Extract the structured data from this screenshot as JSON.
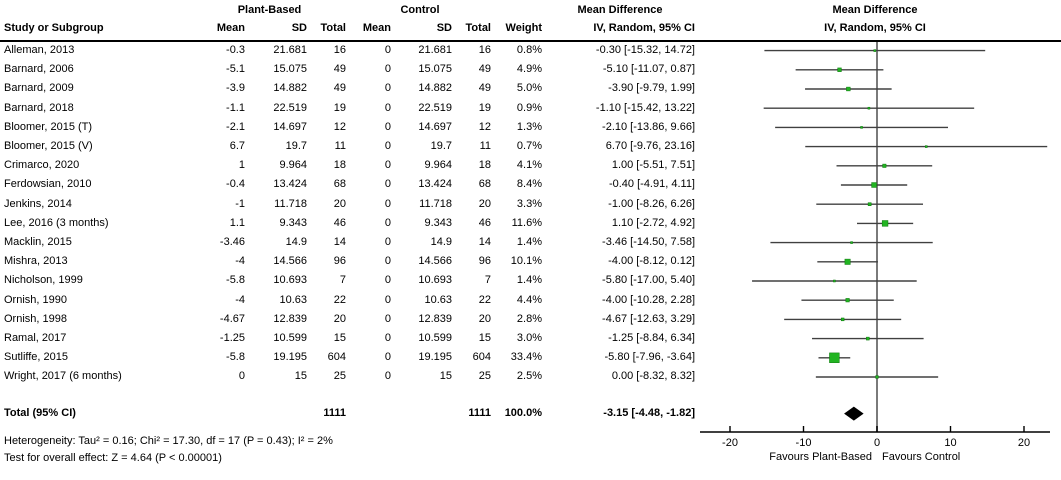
{
  "header": {
    "study_col": "Study or Subgroup",
    "group1_title": "Plant-Based",
    "group2_title": "Control",
    "mean_label": "Mean",
    "sd_label": "SD",
    "total_label": "Total",
    "weight_label": "Weight",
    "md_text_title": "Mean Difference",
    "md_text_subtitle": "IV, Random, 95% CI",
    "md_plot_title": "Mean Difference",
    "md_plot_subtitle": "IV, Random, 95% CI"
  },
  "colors": {
    "marker_green": "#22B422",
    "marker_border": "#0E7A0E",
    "ci_line": "#404040",
    "zero_line": "#7A7A7A",
    "axis": "#000000",
    "diamond": "#000000",
    "text": "#000000"
  },
  "chart_data": {
    "type": "forest",
    "effect_measure": "Mean Difference, IV, Random, 95% CI",
    "xlim": [
      -23.9,
      23.4
    ],
    "axis_ticks": [
      -20,
      -10,
      0,
      10,
      20
    ],
    "favours_left": "Favours Plant-Based",
    "favours_right": "Favours Control",
    "studies": [
      {
        "name": "Alleman, 2013",
        "mean1": "-0.3",
        "sd1": "21.681",
        "total1": "16",
        "mean2": "0",
        "sd2": "21.681",
        "total2": "16",
        "weight": "0.8%",
        "weight_num": 0.8,
        "ci_text": "-0.30 [-15.32, 14.72]",
        "md": -0.3,
        "lo": -15.32,
        "hi": 14.72
      },
      {
        "name": "Barnard, 2006",
        "mean1": "-5.1",
        "sd1": "15.075",
        "total1": "49",
        "mean2": "0",
        "sd2": "15.075",
        "total2": "49",
        "weight": "4.9%",
        "weight_num": 4.9,
        "ci_text": "-5.10 [-11.07, 0.87]",
        "md": -5.1,
        "lo": -11.07,
        "hi": 0.87
      },
      {
        "name": "Barnard, 2009",
        "mean1": "-3.9",
        "sd1": "14.882",
        "total1": "49",
        "mean2": "0",
        "sd2": "14.882",
        "total2": "49",
        "weight": "5.0%",
        "weight_num": 5.0,
        "ci_text": "-3.90 [-9.79, 1.99]",
        "md": -3.9,
        "lo": -9.79,
        "hi": 1.99
      },
      {
        "name": "Barnard, 2018",
        "mean1": "-1.1",
        "sd1": "22.519",
        "total1": "19",
        "mean2": "0",
        "sd2": "22.519",
        "total2": "19",
        "weight": "0.9%",
        "weight_num": 0.9,
        "ci_text": "-1.10 [-15.42, 13.22]",
        "md": -1.1,
        "lo": -15.42,
        "hi": 13.22
      },
      {
        "name": "Bloomer, 2015 (T)",
        "mean1": "-2.1",
        "sd1": "14.697",
        "total1": "12",
        "mean2": "0",
        "sd2": "14.697",
        "total2": "12",
        "weight": "1.3%",
        "weight_num": 1.3,
        "ci_text": "-2.10 [-13.86, 9.66]",
        "md": -2.1,
        "lo": -13.86,
        "hi": 9.66
      },
      {
        "name": "Bloomer, 2015 (V)",
        "mean1": "6.7",
        "sd1": "19.7",
        "total1": "11",
        "mean2": "0",
        "sd2": "19.7",
        "total2": "11",
        "weight": "0.7%",
        "weight_num": 0.7,
        "ci_text": "6.70 [-9.76, 23.16]",
        "md": 6.7,
        "lo": -9.76,
        "hi": 23.16
      },
      {
        "name": "Crimarco, 2020",
        "mean1": "1",
        "sd1": "9.964",
        "total1": "18",
        "mean2": "0",
        "sd2": "9.964",
        "total2": "18",
        "weight": "4.1%",
        "weight_num": 4.1,
        "ci_text": "1.00 [-5.51, 7.51]",
        "md": 1.0,
        "lo": -5.51,
        "hi": 7.51
      },
      {
        "name": "Ferdowsian, 2010",
        "mean1": "-0.4",
        "sd1": "13.424",
        "total1": "68",
        "mean2": "0",
        "sd2": "13.424",
        "total2": "68",
        "weight": "8.4%",
        "weight_num": 8.4,
        "ci_text": "-0.40 [-4.91, 4.11]",
        "md": -0.4,
        "lo": -4.91,
        "hi": 4.11
      },
      {
        "name": "Jenkins, 2014",
        "mean1": "-1",
        "sd1": "11.718",
        "total1": "20",
        "mean2": "0",
        "sd2": "11.718",
        "total2": "20",
        "weight": "3.3%",
        "weight_num": 3.3,
        "ci_text": "-1.00 [-8.26, 6.26]",
        "md": -1.0,
        "lo": -8.26,
        "hi": 6.26
      },
      {
        "name": "Lee, 2016 (3 months)",
        "mean1": "1.1",
        "sd1": "9.343",
        "total1": "46",
        "mean2": "0",
        "sd2": "9.343",
        "total2": "46",
        "weight": "11.6%",
        "weight_num": 11.6,
        "ci_text": "1.10 [-2.72, 4.92]",
        "md": 1.1,
        "lo": -2.72,
        "hi": 4.92
      },
      {
        "name": "Macklin, 2015",
        "mean1": "-3.46",
        "sd1": "14.9",
        "total1": "14",
        "mean2": "0",
        "sd2": "14.9",
        "total2": "14",
        "weight": "1.4%",
        "weight_num": 1.4,
        "ci_text": "-3.46 [-14.50, 7.58]",
        "md": -3.46,
        "lo": -14.5,
        "hi": 7.58
      },
      {
        "name": "Mishra, 2013",
        "mean1": "-4",
        "sd1": "14.566",
        "total1": "96",
        "mean2": "0",
        "sd2": "14.566",
        "total2": "96",
        "weight": "10.1%",
        "weight_num": 10.1,
        "ci_text": "-4.00 [-8.12, 0.12]",
        "md": -4.0,
        "lo": -8.12,
        "hi": 0.12
      },
      {
        "name": "Nicholson, 1999",
        "mean1": "-5.8",
        "sd1": "10.693",
        "total1": "7",
        "mean2": "0",
        "sd2": "10.693",
        "total2": "7",
        "weight": "1.4%",
        "weight_num": 1.4,
        "ci_text": "-5.80 [-17.00, 5.40]",
        "md": -5.8,
        "lo": -17.0,
        "hi": 5.4
      },
      {
        "name": "Ornish, 1990",
        "mean1": "-4",
        "sd1": "10.63",
        "total1": "22",
        "mean2": "0",
        "sd2": "10.63",
        "total2": "22",
        "weight": "4.4%",
        "weight_num": 4.4,
        "ci_text": "-4.00 [-10.28, 2.28]",
        "md": -4.0,
        "lo": -10.28,
        "hi": 2.28
      },
      {
        "name": "Ornish, 1998",
        "mean1": "-4.67",
        "sd1": "12.839",
        "total1": "20",
        "mean2": "0",
        "sd2": "12.839",
        "total2": "20",
        "weight": "2.8%",
        "weight_num": 2.8,
        "ci_text": "-4.67 [-12.63, 3.29]",
        "md": -4.67,
        "lo": -12.63,
        "hi": 3.29
      },
      {
        "name": "Ramal, 2017",
        "mean1": "-1.25",
        "sd1": "10.599",
        "total1": "15",
        "mean2": "0",
        "sd2": "10.599",
        "total2": "15",
        "weight": "3.0%",
        "weight_num": 3.0,
        "ci_text": "-1.25 [-8.84, 6.34]",
        "md": -1.25,
        "lo": -8.84,
        "hi": 6.34
      },
      {
        "name": "Sutliffe, 2015",
        "mean1": "-5.8",
        "sd1": "19.195",
        "total1": "604",
        "mean2": "0",
        "sd2": "19.195",
        "total2": "604",
        "weight": "33.4%",
        "weight_num": 33.4,
        "ci_text": "-5.80 [-7.96, -3.64]",
        "md": -5.8,
        "lo": -7.96,
        "hi": -3.64
      },
      {
        "name": "Wright, 2017 (6 months)",
        "mean1": "0",
        "sd1": "15",
        "total1": "25",
        "mean2": "0",
        "sd2": "15",
        "total2": "25",
        "weight": "2.5%",
        "weight_num": 2.5,
        "ci_text": "0.00 [-8.32, 8.32]",
        "md": 0.0,
        "lo": -8.32,
        "hi": 8.32
      }
    ],
    "total": {
      "name": "Total (95% CI)",
      "total1": "1111",
      "total2": "1111",
      "weight": "100.0%",
      "ci_text": "-3.15 [-4.48, -1.82]",
      "md": -3.15,
      "lo": -4.48,
      "hi": -1.82
    }
  },
  "footnotes": {
    "heterogeneity": "Heterogeneity: Tau² = 0.16; Chi² = 17.30, df = 17 (P = 0.43); I² = 2%",
    "overall_effect": "Test for overall effect: Z = 4.64 (P < 0.00001)"
  }
}
